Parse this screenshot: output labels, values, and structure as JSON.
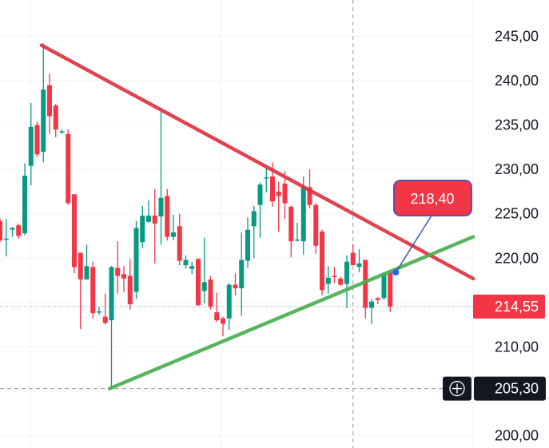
{
  "chart_data": {
    "type": "candlestick",
    "title": "",
    "xlabel": "",
    "ylabel": "",
    "ylim": [
      198.6,
      249.1
    ],
    "grid": true,
    "y_ticks": [
      "245,00",
      "240,00",
      "235,00",
      "230,00",
      "225,00",
      "220,00",
      "210,00",
      "200,00"
    ],
    "y_tick_values": [
      245,
      240,
      235,
      230,
      225,
      220,
      210,
      200
    ],
    "colors": {
      "up": "#089981",
      "down": "#f23645",
      "resistance_line": "#e0323f",
      "support_line": "#4caf50",
      "annotation_border": "#5b4fb8",
      "crosshair_tag": "#131722"
    },
    "candles_ohlc": [
      [
        224.2,
        224.5,
        221.8,
        222.0
      ],
      [
        222.2,
        224.4,
        220.2,
        222.2
      ],
      [
        223.2,
        223.5,
        222.4,
        223.4
      ],
      [
        223.7,
        223.9,
        222.2,
        222.5
      ],
      [
        222.8,
        230.7,
        222.6,
        229.3
      ],
      [
        230.4,
        237.5,
        228.2,
        234.8
      ],
      [
        235.0,
        235.4,
        231.4,
        231.7
      ],
      [
        232.0,
        244.2,
        230.8,
        239.0
      ],
      [
        239.5,
        240.8,
        234.0,
        236.0
      ],
      [
        237.2,
        237.4,
        233.6,
        234.5
      ],
      [
        234.3,
        234.5,
        234.0,
        234.3
      ],
      [
        234.0,
        234.5,
        226.0,
        226.2
      ],
      [
        227.2,
        227.2,
        218.3,
        219.0
      ],
      [
        220.6,
        220.6,
        212.0,
        217.6
      ],
      [
        217.6,
        221.5,
        217.6,
        219.1
      ],
      [
        219.0,
        219.6,
        213.2,
        213.8
      ],
      [
        214.0,
        214.5,
        213.6,
        214.0
      ],
      [
        213.4,
        216.0,
        212.5,
        212.7
      ],
      [
        213.0,
        219.1,
        205.3,
        219.0
      ],
      [
        218.9,
        221.9,
        216.0,
        218.0
      ],
      [
        218.2,
        219.1,
        216.2,
        217.7
      ],
      [
        218.0,
        219.9,
        214.2,
        214.8
      ],
      [
        216.2,
        224.2,
        215.4,
        223.4
      ],
      [
        221.8,
        225.9,
        221.1,
        224.8
      ],
      [
        224.1,
        226.5,
        224.0,
        224.8
      ],
      [
        224.8,
        227.8,
        219.4,
        223.9
      ],
      [
        224.7,
        236.6,
        221.5,
        226.8
      ],
      [
        227.0,
        227.8,
        222.0,
        222.4
      ],
      [
        222.4,
        224.9,
        222.0,
        222.9
      ],
      [
        223.6,
        225.0,
        219.2,
        219.7
      ],
      [
        219.2,
        220.3,
        218.8,
        219.8
      ],
      [
        218.8,
        219.6,
        218.2,
        219.1
      ],
      [
        219.9,
        220.0,
        214.6,
        214.7
      ],
      [
        216.3,
        222.3,
        214.9,
        217.3
      ],
      [
        217.6,
        218.0,
        214.2,
        214.5
      ],
      [
        213.9,
        216.1,
        212.8,
        213.0
      ],
      [
        213.2,
        213.4,
        211.2,
        212.6
      ],
      [
        213.2,
        217.2,
        211.9,
        217.0
      ],
      [
        217.0,
        218.3,
        215.8,
        216.6
      ],
      [
        216.6,
        222.9,
        213.5,
        219.8
      ],
      [
        219.7,
        224.6,
        218.9,
        223.2
      ],
      [
        223.6,
        225.9,
        220.0,
        225.3
      ],
      [
        226.0,
        228.5,
        222.3,
        228.3
      ],
      [
        229.1,
        230.2,
        227.4,
        229.1
      ],
      [
        229.2,
        230.8,
        225.8,
        226.4
      ],
      [
        227.5,
        228.6,
        223.0,
        227.0
      ],
      [
        228.4,
        229.8,
        224.4,
        226.2
      ],
      [
        225.8,
        225.9,
        220.1,
        221.9
      ],
      [
        222.1,
        224.0,
        221.9,
        222.1
      ],
      [
        221.9,
        229.2,
        220.4,
        228.0
      ],
      [
        228.0,
        230.0,
        225.6,
        226.0
      ],
      [
        226.0,
        226.2,
        220.5,
        221.4
      ],
      [
        223.0,
        223.2,
        215.8,
        216.4
      ],
      [
        217.1,
        219.1,
        216.0,
        217.8
      ],
      [
        218.0,
        219.0,
        217.2,
        217.9
      ],
      [
        217.7,
        217.9,
        216.9,
        217.0
      ],
      [
        217.1,
        220.3,
        214.4,
        219.6
      ],
      [
        220.6,
        221.6,
        219.2,
        219.2
      ],
      [
        219.0,
        221.0,
        218.4,
        219.4
      ],
      [
        219.8,
        219.8,
        213.2,
        214.4
      ],
      [
        214.4,
        215.4,
        212.6,
        215.1
      ],
      [
        215.5,
        215.6,
        214.8,
        215.3
      ],
      [
        215.5,
        218.4,
        215.3,
        218.3
      ],
      [
        218.4,
        218.6,
        213.9,
        214.55
      ]
    ],
    "trendlines": [
      {
        "role": "resistance",
        "from": {
          "bar": 6.7,
          "price": 244.0
        },
        "to": {
          "bar": 76.4,
          "price": 217.7
        }
      },
      {
        "role": "support",
        "from": {
          "bar": 17.7,
          "price": 205.3
        },
        "to": {
          "bar": 76.4,
          "price": 222.4
        }
      }
    ],
    "crosshair_bar": 57,
    "annotation": {
      "label": "218,40",
      "bar": 63.9,
      "price": 218.4
    },
    "last_price": {
      "label": "214,55",
      "value": 214.55
    },
    "crosshair_price": {
      "label": "205,30",
      "value": 205.3,
      "icon": "plus-circle-icon"
    }
  }
}
